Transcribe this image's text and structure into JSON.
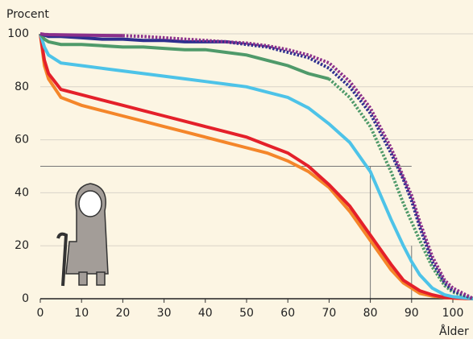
{
  "chart_data": {
    "type": "line",
    "y_label": "Procent",
    "x_label": "Ålder",
    "x": [
      0,
      1,
      2,
      5,
      10,
      15,
      20,
      25,
      30,
      35,
      40,
      45,
      50,
      55,
      60,
      65,
      70,
      75,
      80,
      85,
      88,
      90,
      92,
      95,
      98,
      100,
      105
    ],
    "xlim": [
      0,
      105
    ],
    "xticks": [
      0,
      10,
      20,
      30,
      40,
      50,
      60,
      70,
      80,
      90,
      100
    ],
    "ylim": [
      0,
      100
    ],
    "yticks": [
      0,
      20,
      40,
      60,
      80,
      100
    ],
    "grid": true,
    "reference_lines": {
      "hline": {
        "y": 50,
        "x_end": 90
      },
      "vlines": [
        {
          "x": 80,
          "y_top": 50
        },
        {
          "x": 90,
          "y_top": 20
        }
      ]
    },
    "series": [
      {
        "color": "#8b2f8b",
        "observed_until": 20,
        "values": [
          100,
          99.8,
          99.7,
          99.6,
          99.5,
          99.4,
          99.3,
          99,
          98.5,
          98,
          97.5,
          97,
          96.5,
          95.5,
          94,
          92,
          89,
          82,
          72,
          57,
          46,
          39,
          29,
          16,
          7,
          4,
          0
        ]
      },
      {
        "color": "#2e2f8f",
        "observed_until": 45,
        "values": [
          100,
          99.5,
          99,
          99,
          98.5,
          98,
          98,
          97.5,
          97.5,
          97,
          97,
          97,
          96,
          95,
          93,
          91,
          87,
          80,
          70,
          55,
          45,
          37,
          27,
          14,
          6,
          3,
          0
        ]
      },
      {
        "color": "#4f9a6a",
        "observed_until": 70,
        "values": [
          100,
          98,
          97,
          96,
          96,
          95.5,
          95,
          95,
          94.5,
          94,
          94,
          93,
          92,
          90,
          88,
          85,
          83,
          76,
          65,
          48,
          36,
          29,
          22,
          12,
          5,
          2.5,
          0
        ]
      },
      {
        "color": "#4dc3e8",
        "observed_until": 105,
        "values": [
          100,
          95,
          92,
          89,
          88,
          87,
          86,
          85,
          84,
          83,
          82,
          81,
          80,
          78,
          76,
          72,
          66,
          59,
          48,
          30,
          20,
          14,
          9,
          4,
          1.5,
          0.8,
          0
        ]
      },
      {
        "color": "#e4202a",
        "observed_until": 105,
        "values": [
          100,
          90,
          85,
          79,
          77,
          75,
          73,
          71,
          69,
          67,
          65,
          63,
          61,
          58,
          55,
          50,
          43,
          35,
          24,
          13,
          7,
          5,
          3,
          1.5,
          0.5,
          0.3,
          0
        ]
      },
      {
        "color": "#f4862a",
        "observed_until": 105,
        "values": [
          100,
          88,
          83,
          76,
          73,
          71,
          69,
          67,
          65,
          63,
          61,
          59,
          57,
          55,
          52,
          48,
          42,
          33,
          22,
          11,
          6,
          4,
          2,
          1,
          0.5,
          0.2,
          0
        ]
      }
    ]
  }
}
